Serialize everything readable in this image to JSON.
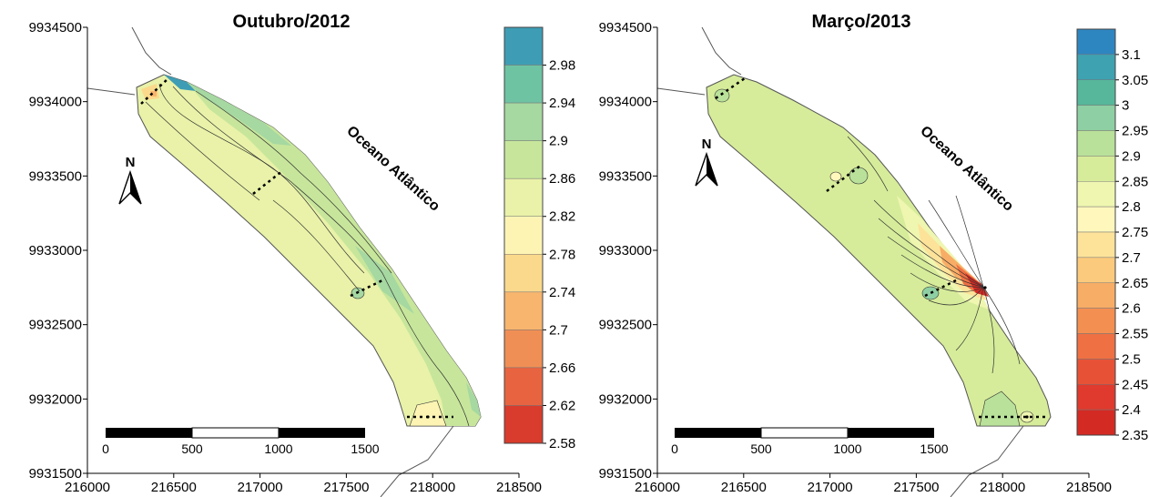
{
  "maps": [
    {
      "title": "Outubro/2012",
      "y_ticks": [
        "9934500",
        "9934000",
        "9933500",
        "9933000",
        "9932500",
        "9932000",
        "9931500"
      ],
      "x_ticks": [
        "216000",
        "216500",
        "217000",
        "217500",
        "218000",
        "218500"
      ],
      "colorbar": [
        {
          "label": "2.98",
          "color": "#3e9db5"
        },
        {
          "label": "2.94",
          "color": "#6ec3a3"
        },
        {
          "label": "2.9",
          "color": "#a6d8a1"
        },
        {
          "label": "2.86",
          "color": "#c7e69b"
        },
        {
          "label": "2.82",
          "color": "#e9f2a8"
        },
        {
          "label": "2.78",
          "color": "#fdf4b4"
        },
        {
          "label": "2.74",
          "color": "#fbd98c"
        },
        {
          "label": "2.7",
          "color": "#f7b56e"
        },
        {
          "label": "2.66",
          "color": "#f08f55"
        },
        {
          "label": "2.62",
          "color": "#e86440"
        },
        {
          "label": "2.58",
          "color": "#d93c2c"
        }
      ],
      "north_label": "N",
      "ocean_label": "Oceano Atlântico",
      "scale_labels": [
        "0",
        "500",
        "1000",
        "1500"
      ]
    },
    {
      "title": "Março/2013",
      "y_ticks": [
        "9934500",
        "9934000",
        "9933500",
        "9933000",
        "9932500",
        "9932000",
        "9931500"
      ],
      "x_ticks": [
        "216000",
        "216500",
        "217000",
        "217500",
        "218000",
        "218500"
      ],
      "colorbar": [
        {
          "label": "3.1",
          "color": "#2e86c1"
        },
        {
          "label": "3.05",
          "color": "#3ea2b0"
        },
        {
          "label": "3",
          "color": "#56b79a"
        },
        {
          "label": "2.95",
          "color": "#8ed0a3"
        },
        {
          "label": "2.9",
          "color": "#b9e19a"
        },
        {
          "label": "2.85",
          "color": "#d6ec9a"
        },
        {
          "label": "2.8",
          "color": "#eff6b0"
        },
        {
          "label": "2.75",
          "color": "#fff7bc"
        },
        {
          "label": "2.7",
          "color": "#fde39a"
        },
        {
          "label": "2.65",
          "color": "#fbca7c"
        },
        {
          "label": "2.6",
          "color": "#f8ad66"
        },
        {
          "label": "2.55",
          "color": "#f48f52"
        },
        {
          "label": "2.5",
          "color": "#ef7043"
        },
        {
          "label": "2.45",
          "color": "#e75236"
        },
        {
          "label": "2.4",
          "color": "#df3a2d"
        },
        {
          "label": "2.35",
          "color": "#d42a24"
        }
      ],
      "north_label": "N",
      "ocean_label": "Oceano Atlântico",
      "scale_labels": [
        "0",
        "500",
        "1000",
        "1500"
      ]
    }
  ]
}
